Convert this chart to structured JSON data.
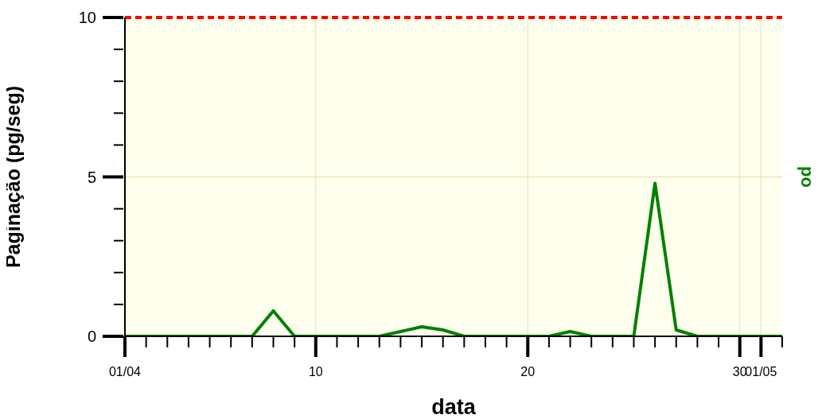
{
  "chart_data": {
    "type": "line",
    "xlabel": "data",
    "ylabel": "Paginação (pg/seg)",
    "y2label": "po",
    "x": [
      "--04-01",
      "--04-02",
      "--04-03",
      "--04-04",
      "--04-05",
      "--04-06",
      "--04-07",
      "--04-08",
      "--04-09",
      "--04-10",
      "--04-11",
      "--04-12",
      "--04-13",
      "--04-14",
      "--04-15",
      "--04-16",
      "--04-17",
      "--04-18",
      "--04-19",
      "--04-20",
      "--04-21",
      "--04-22",
      "--04-23",
      "--04-24",
      "--04-25",
      "--04-26",
      "--04-27",
      "--04-28",
      "--04-29",
      "--04-30",
      "--05-01",
      "--05-02"
    ],
    "series": [
      {
        "name": null,
        "color": "#008000",
        "values": [
          0,
          0,
          0,
          0,
          0,
          0,
          0,
          0.8,
          0,
          0,
          0,
          0,
          0,
          0.15,
          0.3,
          0.2,
          0,
          0,
          0,
          0,
          0,
          0.15,
          0,
          0,
          0,
          4.8,
          0.2,
          0,
          0,
          0,
          0,
          0
        ]
      }
    ],
    "xlim": [
      "--04-01",
      "--05-02"
    ],
    "xticks": [
      {
        "value": "--04-01",
        "label": "01/04"
      },
      {
        "value": "--04-02",
        "label": null
      },
      {
        "value": "--04-03",
        "label": null
      },
      {
        "value": "--04-04",
        "label": null
      },
      {
        "value": "--04-05",
        "label": null
      },
      {
        "value": "--04-06",
        "label": null
      },
      {
        "value": "--04-07",
        "label": null
      },
      {
        "value": "--04-08",
        "label": null
      },
      {
        "value": "--04-09",
        "label": null
      },
      {
        "value": "--04-10",
        "label": "10"
      },
      {
        "value": "--04-11",
        "label": null
      },
      {
        "value": "--04-12",
        "label": null
      },
      {
        "value": "--04-13",
        "label": null
      },
      {
        "value": "--04-14",
        "label": null
      },
      {
        "value": "--04-15",
        "label": null
      },
      {
        "value": "--04-16",
        "label": null
      },
      {
        "value": "--04-17",
        "label": null
      },
      {
        "value": "--04-18",
        "label": null
      },
      {
        "value": "--04-19",
        "label": null
      },
      {
        "value": "--04-20",
        "label": "20"
      },
      {
        "value": "--04-21",
        "label": null
      },
      {
        "value": "--04-22",
        "label": null
      },
      {
        "value": "--04-23",
        "label": null
      },
      {
        "value": "--04-24",
        "label": null
      },
      {
        "value": "--04-25",
        "label": null
      },
      {
        "value": "--04-26",
        "label": null
      },
      {
        "value": "--04-27",
        "label": null
      },
      {
        "value": "--04-28",
        "label": null
      },
      {
        "value": "--04-29",
        "label": null
      },
      {
        "value": "--04-30",
        "label": "30"
      },
      {
        "value": "--05-01",
        "label": "01/05"
      },
      {
        "value": "--05-02",
        "label": null
      }
    ],
    "ylim": [
      0,
      10
    ],
    "yticks": [
      0,
      {
        "value": 1,
        "label": null
      },
      {
        "value": 2,
        "label": null
      },
      {
        "value": 3,
        "label": null
      },
      {
        "value": 4,
        "label": null
      },
      5,
      {
        "value": 6,
        "label": null
      },
      {
        "value": 7,
        "label": null
      },
      {
        "value": 8,
        "label": null
      },
      {
        "value": 9,
        "label": null
      },
      10
    ],
    "ref_lines": [
      {
        "axis": "y",
        "value": 10,
        "label": null,
        "color": "#ff0000",
        "line_style": "dashed"
      }
    ],
    "grid": true,
    "marker": "none",
    "line_style": "solid"
  }
}
